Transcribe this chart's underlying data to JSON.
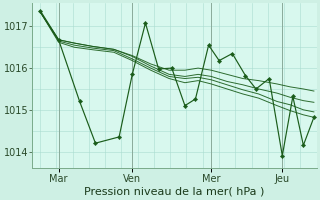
{
  "bg_color": "#cef0e4",
  "plot_bg_color": "#d8f8ee",
  "grid_color": "#aaddd0",
  "line_color": "#1a5c1a",
  "marker_color": "#1a5c1a",
  "vline_color": "#8aaa9a",
  "xlabel": "Pression niveau de la mer( hPa )",
  "xlabel_fontsize": 8,
  "ytick_fontsize": 7,
  "xtick_fontsize": 7,
  "yticks": [
    1014,
    1015,
    1016,
    1017
  ],
  "ylim": [
    1013.6,
    1017.55
  ],
  "day_labels": [
    "Mar",
    "Ven",
    "Mer",
    "Jeu"
  ],
  "xlim": [
    -0.3,
    10.5
  ],
  "n_grid_cols": 18,
  "vline_positions": [
    0.7,
    3.5,
    6.5,
    9.2
  ],
  "smooth_series_x": [
    0,
    0.7,
    1.3,
    2.0,
    2.8,
    3.5,
    4.2,
    4.9,
    5.5,
    6.0,
    6.5,
    7.1,
    7.7,
    8.3,
    9.0,
    9.5,
    10.0,
    10.4
  ],
  "smooth_series": [
    [
      1017.35,
      1016.68,
      1016.6,
      1016.52,
      1016.45,
      1016.3,
      1016.1,
      1015.95,
      1015.95,
      1016.0,
      1015.95,
      1015.85,
      1015.75,
      1015.7,
      1015.62,
      1015.55,
      1015.5,
      1015.45
    ],
    [
      1017.35,
      1016.68,
      1016.6,
      1016.52,
      1016.45,
      1016.28,
      1016.05,
      1015.85,
      1015.8,
      1015.85,
      1015.8,
      1015.68,
      1015.6,
      1015.5,
      1015.4,
      1015.3,
      1015.22,
      1015.18
    ],
    [
      1017.35,
      1016.65,
      1016.55,
      1016.48,
      1016.42,
      1016.22,
      1016.0,
      1015.8,
      1015.75,
      1015.78,
      1015.72,
      1015.6,
      1015.48,
      1015.38,
      1015.2,
      1015.12,
      1015.0,
      1014.95
    ],
    [
      1017.35,
      1016.62,
      1016.5,
      1016.44,
      1016.38,
      1016.18,
      1015.95,
      1015.75,
      1015.65,
      1015.7,
      1015.62,
      1015.5,
      1015.38,
      1015.28,
      1015.1,
      1014.98,
      1014.88,
      1014.82
    ]
  ],
  "main_x": [
    0,
    0.7,
    1.5,
    2.1,
    3.0,
    3.5,
    4.0,
    4.5,
    5.0,
    5.5,
    5.9,
    6.4,
    6.8,
    7.3,
    7.8,
    8.2,
    8.7,
    9.2,
    9.6,
    10.0,
    10.4
  ],
  "main_y": [
    1017.38,
    1016.68,
    1015.2,
    1014.2,
    1014.35,
    1015.85,
    1017.08,
    1015.98,
    1016.0,
    1015.1,
    1015.26,
    1016.55,
    1016.18,
    1016.35,
    1015.82,
    1015.5,
    1015.75,
    1013.9,
    1015.32,
    1014.15,
    1014.82
  ]
}
